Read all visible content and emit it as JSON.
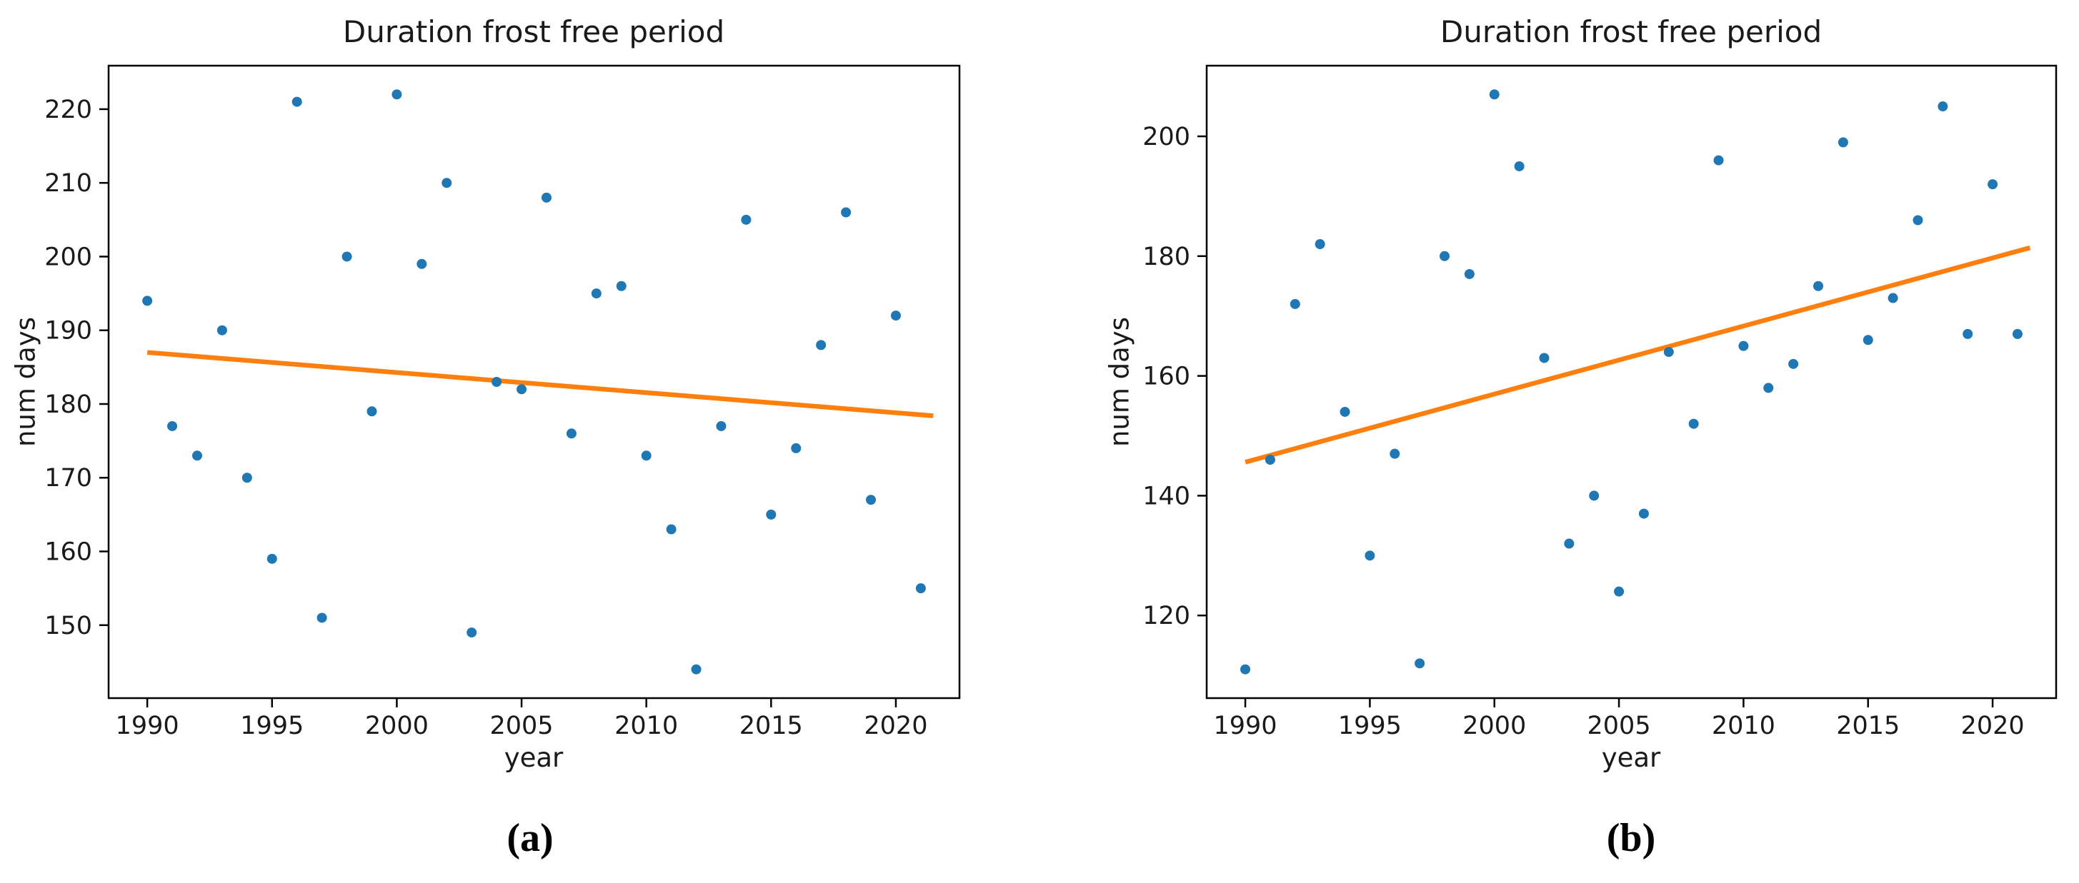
{
  "figure": {
    "background_color": "#ffffff",
    "point_color": "#1f77b4",
    "trendline_color": "#ff7f0e",
    "axis_color": "#000000",
    "text_color": "#1a1a1a"
  },
  "chart_data": [
    {
      "id": "a",
      "type": "scatter",
      "title": "Duration frost free period",
      "xlabel": "year",
      "ylabel": "num days",
      "caption": "(a)",
      "legend_position": "none",
      "grid": false,
      "x": [
        1990,
        1991,
        1992,
        1993,
        1994,
        1995,
        1996,
        1997,
        1998,
        1999,
        2000,
        2001,
        2002,
        2003,
        2004,
        2005,
        2006,
        2007,
        2008,
        2009,
        2010,
        2011,
        2012,
        2013,
        2014,
        2015,
        2016,
        2017,
        2018,
        2019,
        2020,
        2021
      ],
      "y": [
        194,
        177,
        173,
        190,
        170,
        159,
        221,
        151,
        200,
        179,
        222,
        199,
        210,
        149,
        183,
        182,
        208,
        176,
        195,
        196,
        173,
        163,
        144,
        177,
        205,
        165,
        174,
        188,
        206,
        167,
        192,
        155
      ],
      "trendline": {
        "x1": 1990,
        "y1": 187.0,
        "x2": 2021.5,
        "y2": 178.4
      },
      "xlim": [
        1988.45,
        2022.55
      ],
      "ylim": [
        140.1,
        225.9
      ],
      "xticks": [
        1990,
        1995,
        2000,
        2005,
        2010,
        2015,
        2020
      ],
      "yticks": [
        150,
        160,
        170,
        180,
        190,
        200,
        210,
        220
      ]
    },
    {
      "id": "b",
      "type": "scatter",
      "title": "Duration frost free period",
      "xlabel": "year",
      "ylabel": "num days",
      "caption": "(b)",
      "legend_position": "none",
      "grid": false,
      "x": [
        1990,
        1991,
        1992,
        1993,
        1994,
        1995,
        1996,
        1997,
        1998,
        1999,
        2000,
        2001,
        2002,
        2003,
        2004,
        2005,
        2006,
        2007,
        2008,
        2009,
        2010,
        2011,
        2012,
        2013,
        2014,
        2015,
        2016,
        2017,
        2018,
        2019,
        2020,
        2021
      ],
      "y": [
        111,
        146,
        172,
        182,
        154,
        130,
        147,
        112,
        180,
        177,
        207,
        195,
        163,
        132,
        140,
        124,
        137,
        164,
        152,
        196,
        165,
        158,
        162,
        175,
        199,
        166,
        173,
        186,
        205,
        167,
        192,
        167
      ],
      "trendline": {
        "x1": 1990,
        "y1": 145.6,
        "x2": 2021.5,
        "y2": 181.4
      },
      "xlim": [
        1988.45,
        2022.55
      ],
      "ylim": [
        106.2,
        211.8
      ],
      "xticks": [
        1990,
        1995,
        2000,
        2005,
        2010,
        2015,
        2020
      ],
      "yticks": [
        120,
        140,
        160,
        180,
        200
      ]
    }
  ]
}
